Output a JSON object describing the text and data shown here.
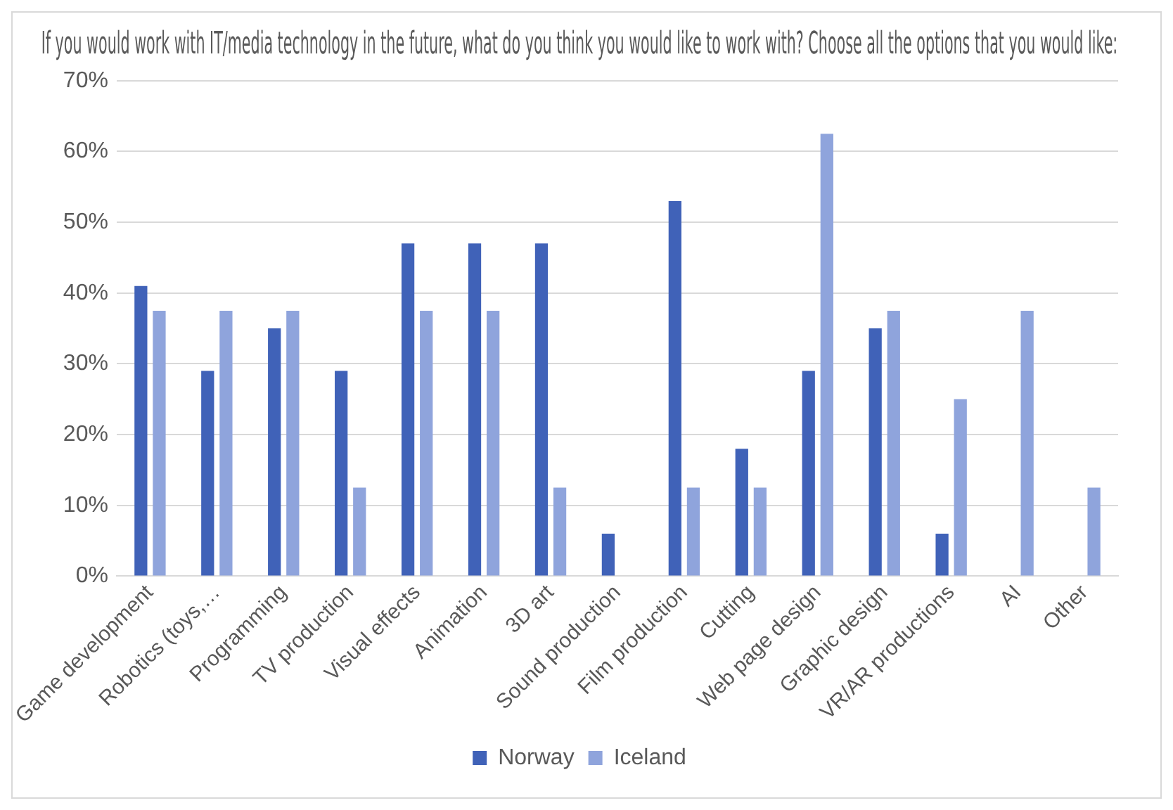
{
  "chart_data": {
    "type": "bar",
    "title": "If you would work with IT/media technology in the future, what do you think you would like to work with? Choose all the options that you would like:",
    "categories": [
      "Game development",
      "Robotics (toys,…",
      "Programming",
      "TV production",
      "Visual effects",
      "Animation",
      "3D art",
      "Sound production",
      "Film production",
      "Cutting",
      "Web page design",
      "Graphic design",
      "VR/AR productions",
      "AI",
      "Other"
    ],
    "series": [
      {
        "name": "Norway",
        "color": "#4062b8",
        "values": [
          41,
          29,
          35,
          29,
          47,
          47,
          47,
          6,
          53,
          18,
          29,
          35,
          6,
          0,
          0
        ]
      },
      {
        "name": "Iceland",
        "color": "#8fa4dc",
        "values": [
          37.5,
          37.5,
          37.5,
          12.5,
          37.5,
          37.5,
          12.5,
          0,
          12.5,
          12.5,
          62.5,
          37.5,
          25,
          37.5,
          12.5
        ]
      }
    ],
    "ylim": [
      0,
      70
    ],
    "yticks": [
      {
        "value": 0,
        "label": "0%"
      },
      {
        "value": 10,
        "label": "10%"
      },
      {
        "value": 20,
        "label": "20%"
      },
      {
        "value": 30,
        "label": "30%"
      },
      {
        "value": 40,
        "label": "40%"
      },
      {
        "value": 50,
        "label": "50%"
      },
      {
        "value": 60,
        "label": "60%"
      },
      {
        "value": 70,
        "label": "70%"
      }
    ],
    "grid": "y",
    "legend": "bottom"
  }
}
